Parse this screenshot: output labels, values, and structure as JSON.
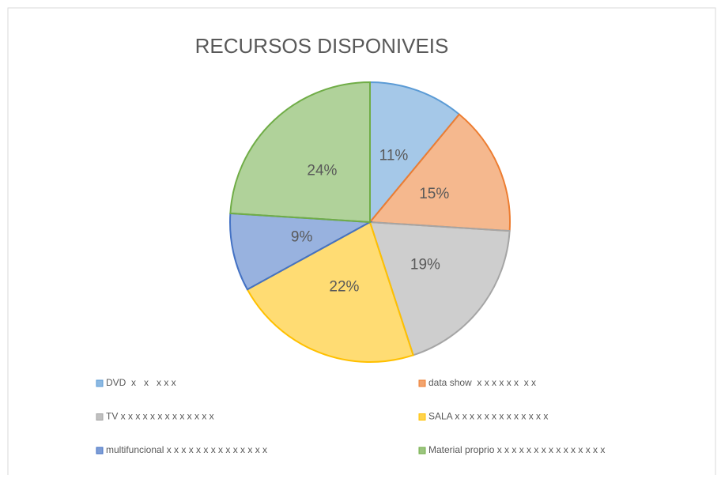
{
  "chart_data": {
    "type": "pie",
    "title": "RECURSOS DISPONIVEIS",
    "categories": [
      "DVD  x   x   x x x",
      "data show  x x x x x x  x x",
      "TV x x x x x x x x x x x x x",
      "SALA x x x x x x x x x x x x x",
      "multifuncional x x x x x x x x x x x x x x",
      "Material proprio x x x x x x x x x x x x x x x"
    ],
    "values": [
      11,
      15,
      19,
      22,
      9,
      24
    ],
    "value_labels": [
      "11%",
      "15%",
      "19%",
      "22%",
      "9%",
      "24%"
    ],
    "colors": [
      "#5b9bd5",
      "#ed7d31",
      "#a5a5a5",
      "#ffc000",
      "#4472c4",
      "#70ad47"
    ],
    "legend": "bottom"
  }
}
